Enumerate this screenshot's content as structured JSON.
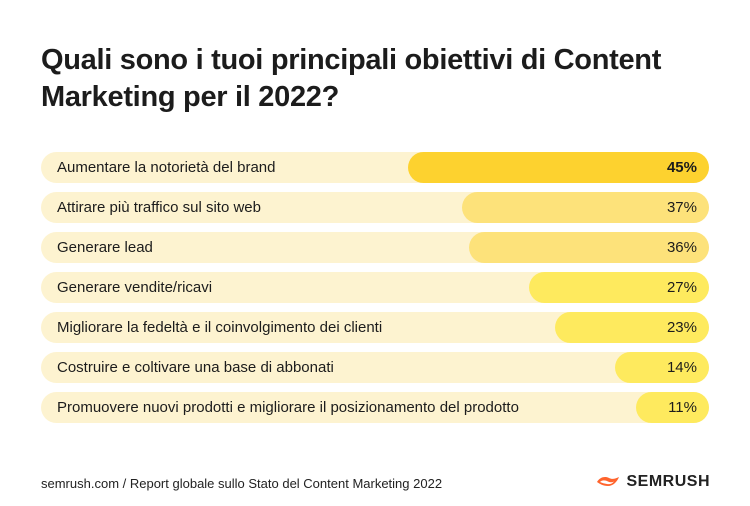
{
  "title": "Quali sono i tuoi principali obiettivi di Content Marketing per il 2022?",
  "footer": "semrush.com / Report globale sullo Stato del Content Marketing 2022",
  "brand": "SEMRUSH",
  "colors": {
    "track": "#fdf3d0",
    "bar_top": "#fdd22f",
    "bar_mid": "#fde27a",
    "bar_low": "#feea5e",
    "logo": "#ff642d"
  },
  "chart_data": {
    "type": "bar",
    "orientation": "horizontal",
    "title": "Quali sono i tuoi principali obiettivi di Content Marketing per il 2022?",
    "categories": [
      "Aumentare la notorietà del brand",
      "Attirare più traffico sul sito web",
      "Generare lead",
      "Generare vendite/ricavi",
      "Migliorare la fedeltà e il coinvolgimento dei clienti",
      "Costruire e coltivare una base di abbonati",
      "Promuovere nuovi prodotti e migliorare il posizionamento del prodotto"
    ],
    "values": [
      45,
      37,
      36,
      27,
      23,
      14,
      11
    ],
    "value_labels": [
      "45%",
      "37%",
      "36%",
      "27%",
      "23%",
      "14%",
      "11%"
    ],
    "unit": "%",
    "xlim": [
      0,
      100
    ],
    "grid": false,
    "legend": "none"
  }
}
